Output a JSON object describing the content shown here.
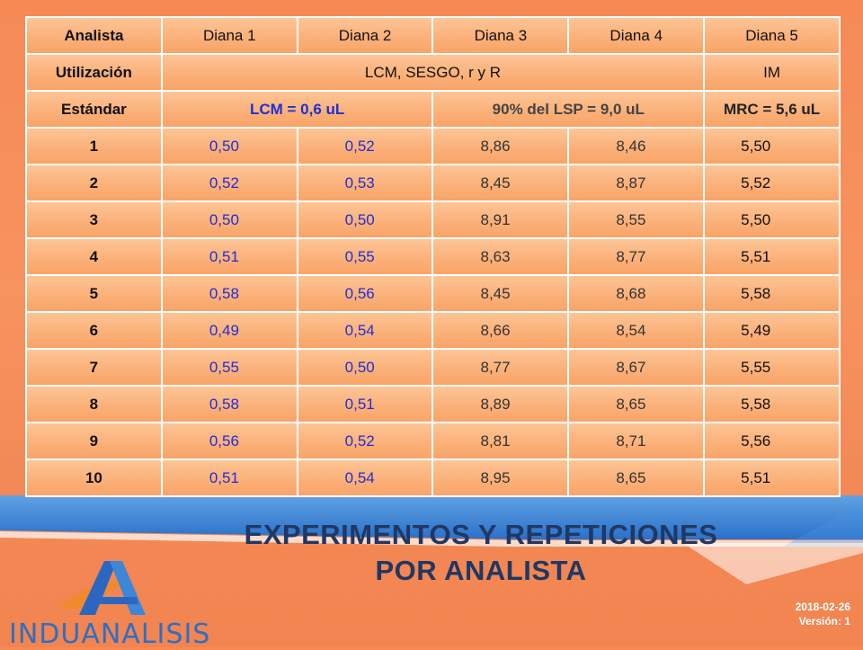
{
  "table": {
    "header": [
      "Analista",
      "Diana 1",
      "Diana 2",
      "Diana 3",
      "Diana 4",
      "Diana 5"
    ],
    "utilizacion": {
      "label": "Utilización",
      "span_text": "LCM, SESGO, r y R",
      "last": "IM"
    },
    "estandar": {
      "label": "Estándar",
      "d12": "LCM = 0,6 uL",
      "d34": "90% del LSP = 9,0 uL",
      "d5": "MRC = 5,6 uL"
    },
    "rows": [
      {
        "id": "1",
        "values": [
          "0,50",
          "0,52",
          "8,86",
          "8,46",
          "5,50"
        ]
      },
      {
        "id": "2",
        "values": [
          "0,52",
          "0,53",
          "8,45",
          "8,87",
          "5,52"
        ]
      },
      {
        "id": "3",
        "values": [
          "0,50",
          "0,50",
          "8,91",
          "8,55",
          "5,50"
        ]
      },
      {
        "id": "4",
        "values": [
          "0,51",
          "0,55",
          "8,63",
          "8,77",
          "5,51"
        ]
      },
      {
        "id": "5",
        "values": [
          "0,58",
          "0,56",
          "8,45",
          "8,68",
          "5,58"
        ]
      },
      {
        "id": "6",
        "values": [
          "0,49",
          "0,54",
          "8,66",
          "8,54",
          "5,49"
        ]
      },
      {
        "id": "7",
        "values": [
          "0,55",
          "0,50",
          "8,77",
          "8,67",
          "5,55"
        ]
      },
      {
        "id": "8",
        "values": [
          "0,58",
          "0,51",
          "8,89",
          "8,65",
          "5,58"
        ]
      },
      {
        "id": "9",
        "values": [
          "0,56",
          "0,52",
          "8,81",
          "8,71",
          "5,56"
        ]
      },
      {
        "id": "10",
        "values": [
          "0,51",
          "0,54",
          "8,95",
          "8,65",
          "5,51"
        ]
      }
    ]
  },
  "title": {
    "line1": "EXPERIMENTOS Y REPETICIONES",
    "line2": "POR ANALISTA"
  },
  "meta": {
    "date": "2018-02-26",
    "version": "Versión: 1"
  },
  "brand": {
    "name": "INDUANALISIS"
  },
  "colors": {
    "title": "#1f3864",
    "blue_values": "#1f2fd6",
    "banner": "#2f7fd6"
  }
}
